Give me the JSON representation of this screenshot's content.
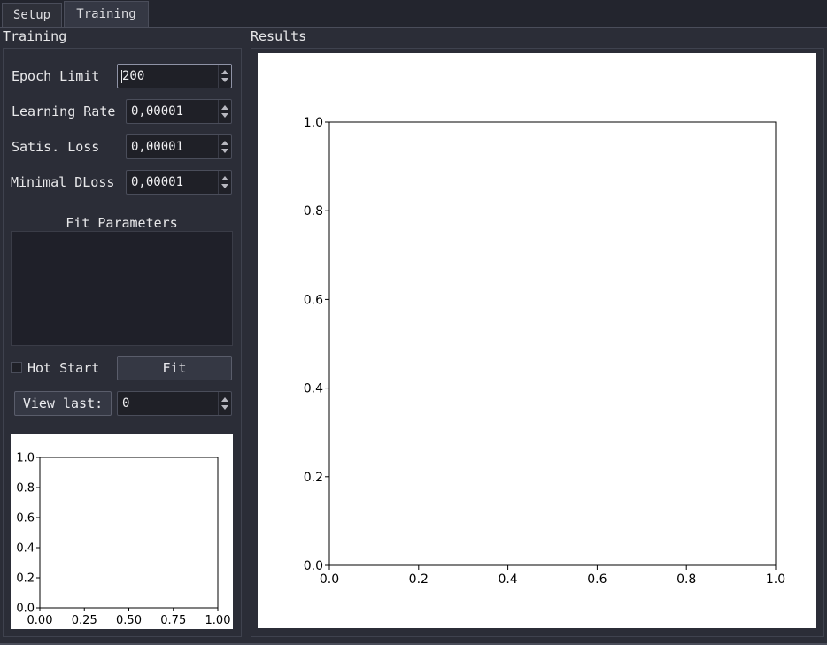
{
  "tabs": [
    {
      "label": "Setup",
      "active": false
    },
    {
      "label": "Training",
      "active": true
    }
  ],
  "training_group": {
    "title": "Training",
    "epoch_limit": {
      "label": "Epoch Limit",
      "value": "200"
    },
    "learning_rate": {
      "label": "Learning Rate",
      "value": "0,00001"
    },
    "satis_loss": {
      "label": "Satis. Loss",
      "value": "0,00001"
    },
    "minimal_dloss": {
      "label": "Minimal DLoss",
      "value": "0,00001"
    },
    "fit_parameters_title": "Fit Parameters",
    "hot_start": {
      "label": "Hot Start",
      "checked": false
    },
    "fit_button": "Fit",
    "view_last_button": "View last:",
    "view_last_value": "0"
  },
  "results_group": {
    "title": "Results"
  },
  "chart_data": [
    {
      "type": "line",
      "series": [],
      "xlim": [
        0.0,
        1.0
      ],
      "ylim": [
        0.0,
        1.0
      ],
      "xticks": [
        "0.00",
        "0.25",
        "0.50",
        "0.75",
        "1.00"
      ],
      "yticks": [
        "0.0",
        "0.2",
        "0.4",
        "0.6",
        "0.8",
        "1.0"
      ],
      "grid": false
    },
    {
      "type": "line",
      "series": [],
      "xlim": [
        0.0,
        1.0
      ],
      "ylim": [
        0.0,
        1.0
      ],
      "xticks": [
        "0.0",
        "0.2",
        "0.4",
        "0.6",
        "0.8",
        "1.0"
      ],
      "yticks": [
        "0.0",
        "0.2",
        "0.4",
        "0.6",
        "0.8",
        "1.0"
      ],
      "grid": false
    }
  ]
}
